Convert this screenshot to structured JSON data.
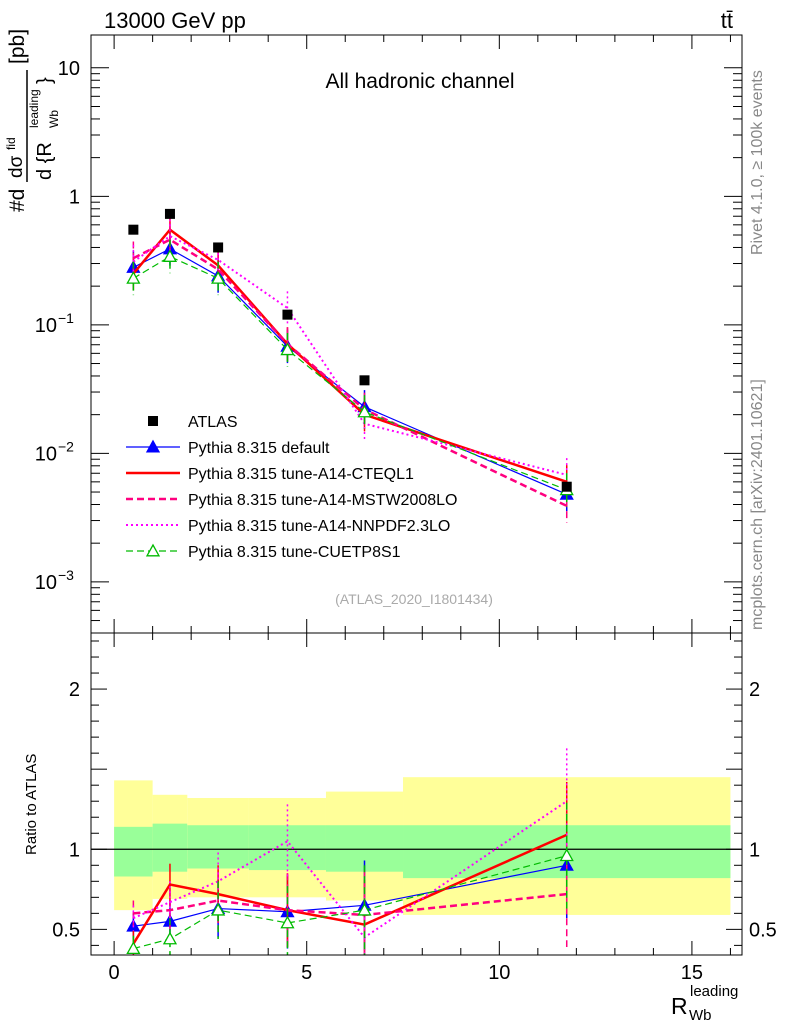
{
  "header": {
    "energy_label": "13000 GeV pp",
    "process_label": "tt̄",
    "side_label_top": "Rivet 4.1.0, ≥ 100k events",
    "side_label_bottom": "mcplots.cern.ch [arXiv:2401.10621]"
  },
  "chart_data": {
    "type": "line",
    "title": "All hadronic channel",
    "analysis_tag": "(ATLAS_2020_I1801434)",
    "ylabel_top": "#d dσ^fid / d{R_Wb^leading} [pb]",
    "ylabel_top_parts": {
      "prefix": "#d",
      "numerator": "dσ",
      "fid": "fid",
      "denominator": "d {R",
      "sub": "Wb",
      "sup": "leading",
      "close": "}",
      "units": "[pb]"
    },
    "ylabel_bottom": "Ratio to ATLAS",
    "xlabel": "R_Wb^leading",
    "xlabel_parts": {
      "main": "R",
      "sub": "Wb",
      "sup": "leading"
    },
    "xlim": [
      -0.6,
      16.3
    ],
    "ylim_top": [
      0.0004,
      18
    ],
    "ylim_bottom": [
      0.34,
      2.35
    ],
    "y_scale_top": "log",
    "x_ticks": [
      0,
      5,
      10,
      15
    ],
    "x_tick_labels": [
      "0",
      "5",
      "10",
      "15"
    ],
    "y_ticks_top": [
      {
        "value": 10,
        "base": "10",
        "exp": ""
      },
      {
        "value": 1,
        "base": "1",
        "exp": ""
      },
      {
        "value": 0.1,
        "base": "10",
        "exp": "−1"
      },
      {
        "value": 0.01,
        "base": "10",
        "exp": "−2"
      },
      {
        "value": 0.001,
        "base": "10",
        "exp": "−3"
      }
    ],
    "y_ticks_bottom": [
      {
        "value": 2,
        "label": "2"
      },
      {
        "value": 1,
        "label": "1"
      },
      {
        "value": 0.5,
        "label": "0.5"
      }
    ],
    "bins": [
      [
        0,
        1
      ],
      [
        1,
        1.9
      ],
      [
        1.9,
        3.5
      ],
      [
        3.5,
        5.5
      ],
      [
        5.5,
        7.5
      ],
      [
        7.5,
        16
      ]
    ],
    "x": [
      0.5,
      1.45,
      2.7,
      4.5,
      6.5,
      11.75
    ],
    "ratio_bands": {
      "green_low": [
        0.83,
        0.86,
        0.88,
        0.87,
        0.86,
        0.82
      ],
      "green_high": [
        1.14,
        1.16,
        1.15,
        1.15,
        1.15,
        1.15
      ],
      "yellow_low": [
        0.62,
        0.69,
        0.7,
        0.7,
        0.68,
        0.59
      ],
      "yellow_high": [
        1.43,
        1.34,
        1.32,
        1.32,
        1.36,
        1.45
      ]
    },
    "series": [
      {
        "name": "ATLAS",
        "style": "data",
        "color": "#000000",
        "values": [
          0.55,
          0.73,
          0.4,
          0.12,
          0.037,
          0.0055
        ]
      },
      {
        "name": "Pythia 8.315 default",
        "style": "solid",
        "marker": "triangle-filled",
        "color": "#0000ff",
        "width": 1.2,
        "values": [
          0.28,
          0.39,
          0.24,
          0.068,
          0.023,
          0.0048
        ],
        "ratio": [
          0.52,
          0.55,
          0.63,
          0.61,
          0.65,
          0.9
        ]
      },
      {
        "name": "Pythia 8.315 tune-A14-CTEQL1",
        "style": "solid",
        "marker": "none",
        "color": "#ff0000",
        "width": 2.5,
        "values": [
          0.25,
          0.55,
          0.29,
          0.071,
          0.02,
          0.006
        ],
        "ratio": [
          0.41,
          0.78,
          0.72,
          0.62,
          0.53,
          1.09
        ]
      },
      {
        "name": "Pythia 8.315 tune-A14-MSTW2008LO",
        "style": "dashed",
        "marker": "none",
        "color": "#ff007f",
        "width": 2.5,
        "values": [
          0.33,
          0.46,
          0.27,
          0.071,
          0.022,
          0.0039
        ],
        "ratio": [
          0.6,
          0.62,
          0.68,
          0.62,
          0.59,
          0.72
        ]
      },
      {
        "name": "Pythia 8.315 tune-A14-NNPDF2.3LO",
        "style": "dotted",
        "marker": "none",
        "color": "#ff00ff",
        "width": 2,
        "values": [
          0.31,
          0.49,
          0.32,
          0.135,
          0.017,
          0.0068
        ],
        "ratio": [
          0.57,
          0.67,
          0.8,
          1.05,
          0.45,
          1.3
        ]
      },
      {
        "name": "Pythia 8.315 tune-CUETP8S1",
        "style": "dashed",
        "marker": "triangle-open",
        "color": "#00bb00",
        "width": 1.2,
        "values": [
          0.23,
          0.34,
          0.23,
          0.064,
          0.021,
          0.0052
        ],
        "ratio": [
          0.38,
          0.44,
          0.62,
          0.54,
          0.62,
          0.96
        ]
      }
    ]
  }
}
